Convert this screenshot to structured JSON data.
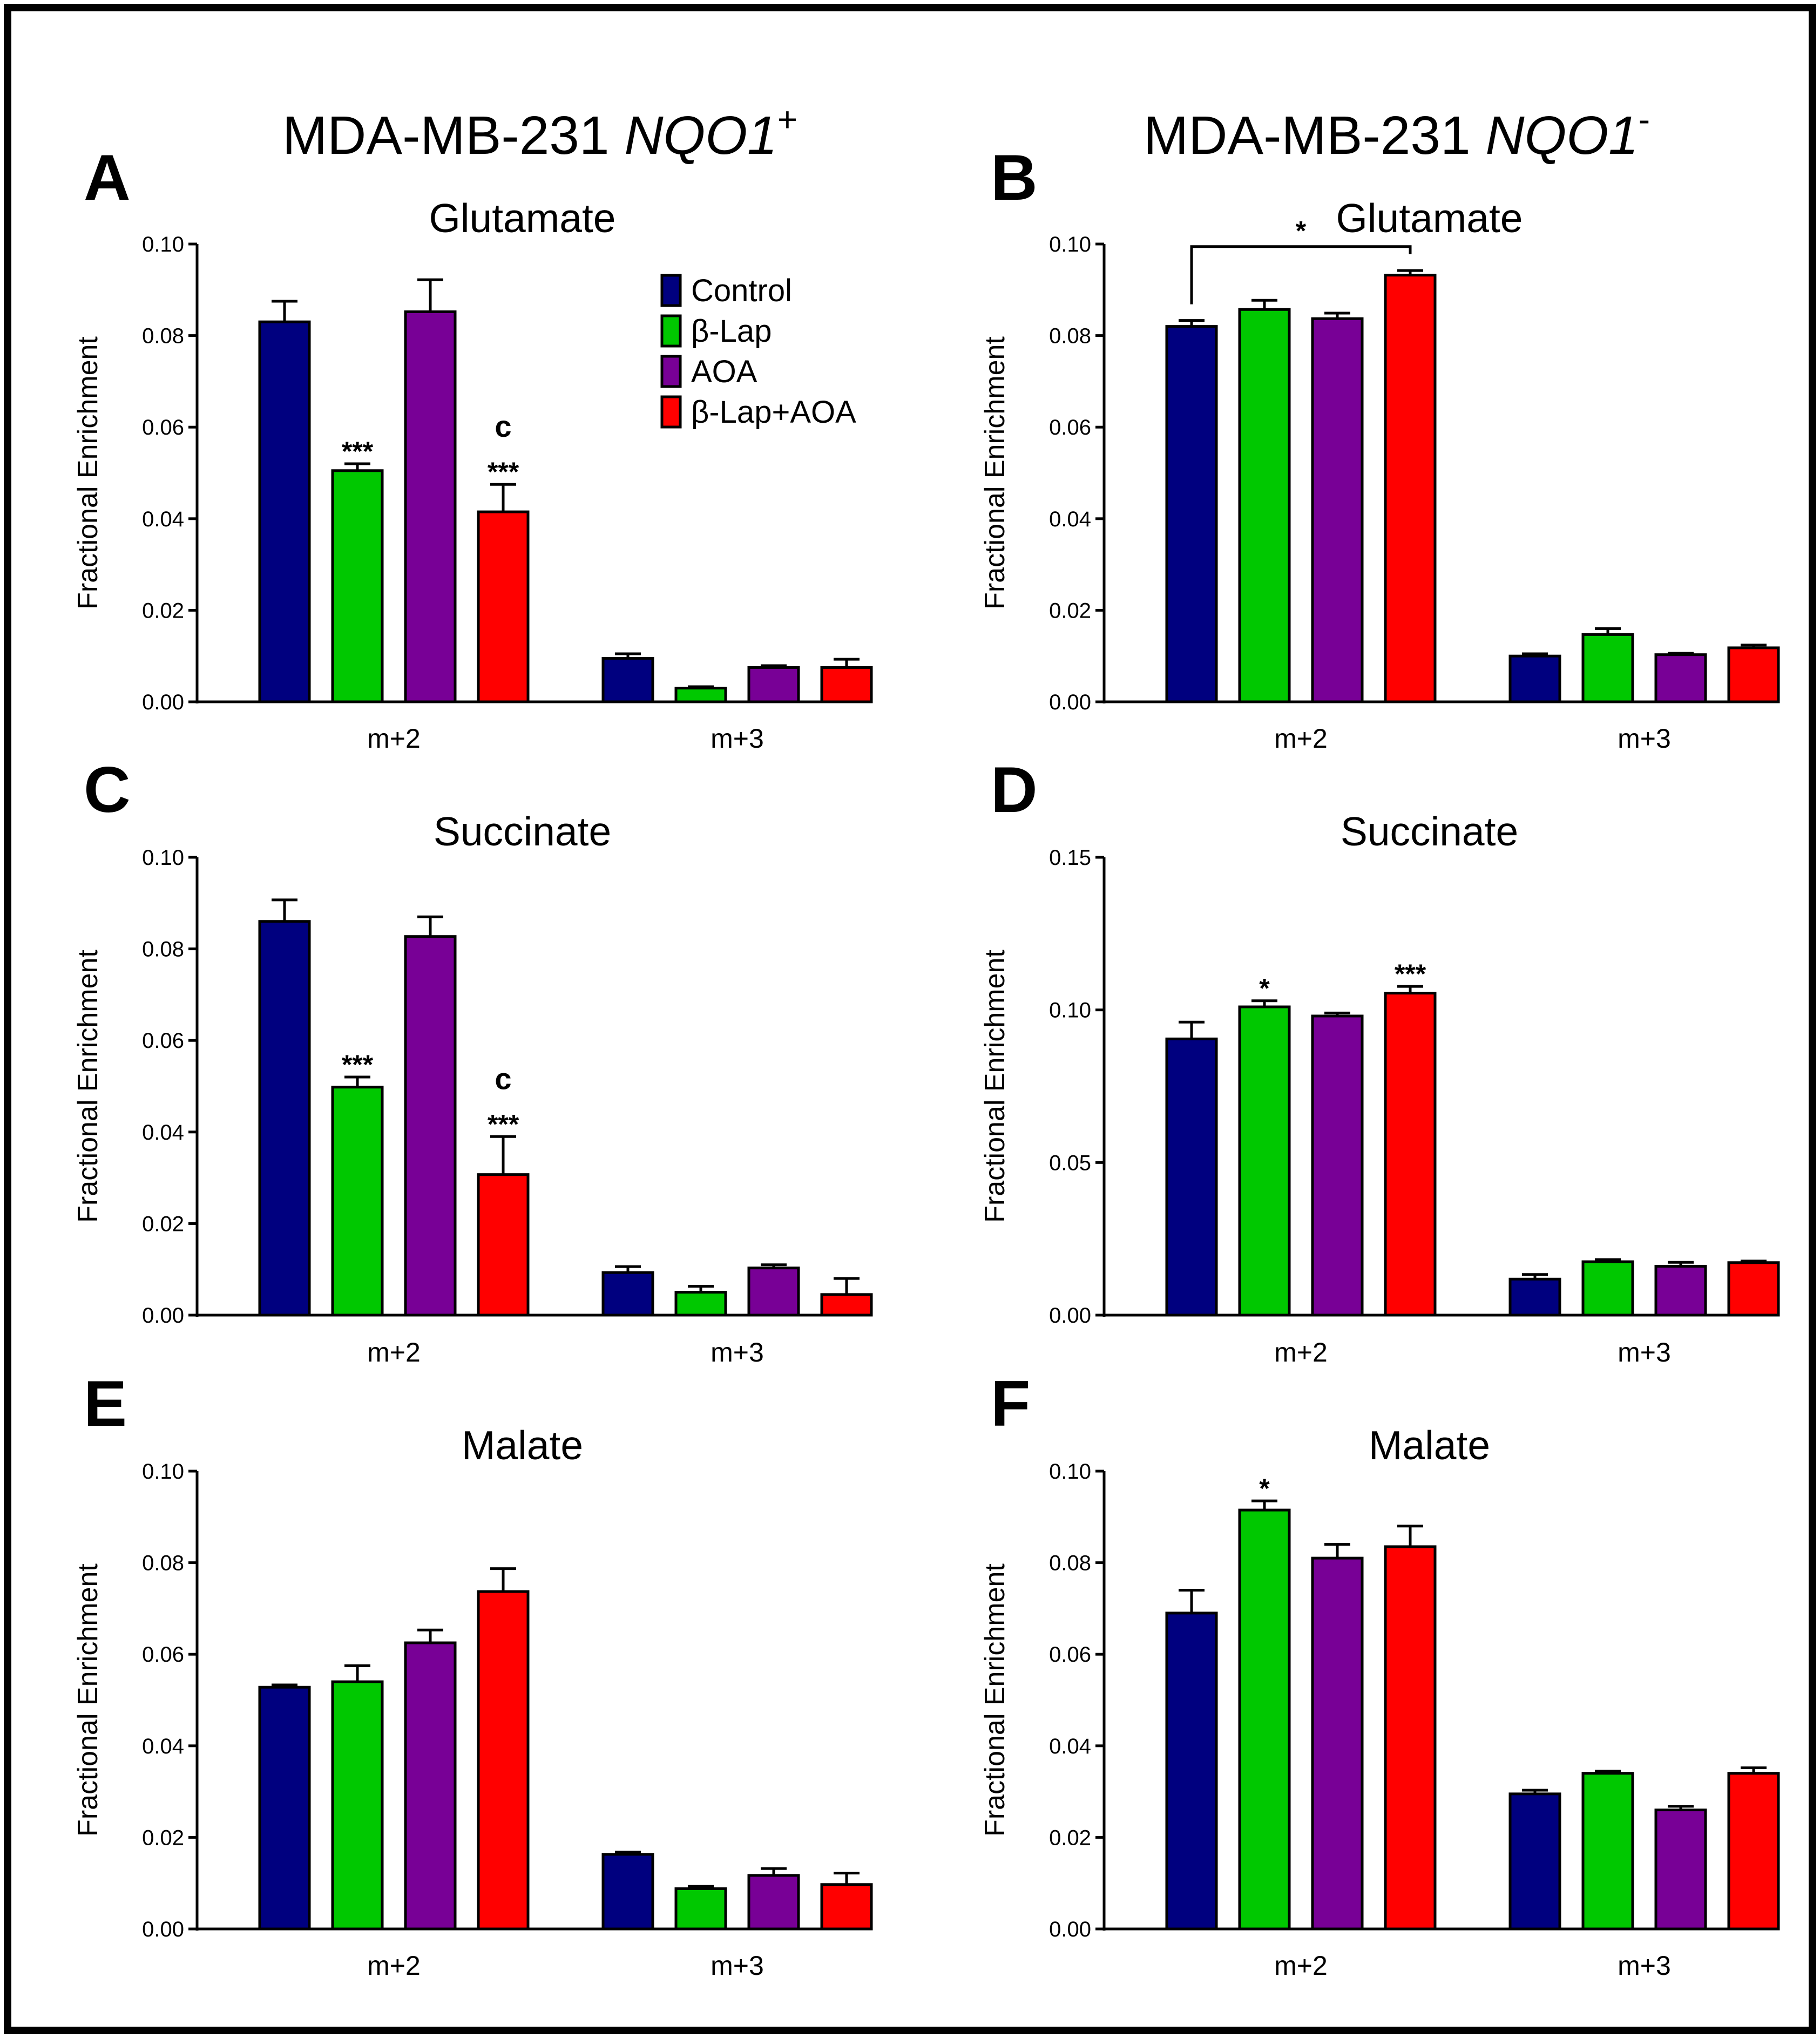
{
  "header": {
    "left_title": "MDA-MB-231 ",
    "left_gene": "NQO1",
    "left_sup": "+",
    "right_title": "MDA-MB-231 ",
    "right_gene": "NQO1",
    "right_sup": "-"
  },
  "legend": {
    "items": [
      {
        "label": "Control",
        "color": "#00007f"
      },
      {
        "label": "β-Lap",
        "color": "#00c800"
      },
      {
        "label": "AOA",
        "color": "#780096"
      },
      {
        "label": "β-Lap+AOA",
        "color": "#ff0000"
      }
    ]
  },
  "colors": {
    "control": "#00007f",
    "blap": "#00c800",
    "aoa": "#780096",
    "combo": "#ff0000",
    "frame": "#000000"
  },
  "chart_data": [
    {
      "panel": "A",
      "type": "bar",
      "title": "Glutamate",
      "ylabel": "Fractional Enrichment",
      "xlabel": "",
      "ylim": [
        0,
        0.1
      ],
      "yticks": [
        "0.00",
        "0.02",
        "0.04",
        "0.06",
        "0.08",
        "0.10"
      ],
      "categories": [
        "m+2",
        "m+3"
      ],
      "series": [
        {
          "name": "Control",
          "values": [
            0.083,
            0.0095
          ],
          "errors": [
            0.0045,
            0.001
          ]
        },
        {
          "name": "β-Lap",
          "values": [
            0.0505,
            0.003
          ],
          "errors": [
            0.0015,
            0.0003
          ]
        },
        {
          "name": "AOA",
          "values": [
            0.0852,
            0.0075
          ],
          "errors": [
            0.007,
            0.0004
          ]
        },
        {
          "name": "β-Lap+AOA",
          "values": [
            0.0415,
            0.0075
          ],
          "errors": [
            0.006,
            0.0018
          ]
        }
      ],
      "annotations": [
        {
          "category": 0,
          "series": 1,
          "text": "***"
        },
        {
          "category": 0,
          "series": 3,
          "text": "***"
        },
        {
          "category": 0,
          "series": 3,
          "text": "c"
        }
      ],
      "bracket": null
    },
    {
      "panel": "B",
      "type": "bar",
      "title": "Glutamate",
      "ylabel": "Fractional Enrichment",
      "xlabel": "",
      "ylim": [
        0,
        0.1
      ],
      "yticks": [
        "0.00",
        "0.02",
        "0.04",
        "0.06",
        "0.08",
        "0.10"
      ],
      "categories": [
        "m+2",
        "m+3"
      ],
      "series": [
        {
          "name": "Control",
          "values": [
            0.082,
            0.01
          ],
          "errors": [
            0.0013,
            0.0005
          ]
        },
        {
          "name": "β-Lap",
          "values": [
            0.0857,
            0.0147
          ],
          "errors": [
            0.002,
            0.0013
          ]
        },
        {
          "name": "AOA",
          "values": [
            0.0837,
            0.0103
          ],
          "errors": [
            0.0012,
            0.0003
          ]
        },
        {
          "name": "β-Lap+AOA",
          "values": [
            0.0932,
            0.0118
          ],
          "errors": [
            0.001,
            0.0006
          ]
        }
      ],
      "annotations": [],
      "bracket": {
        "from_series": 0,
        "to_series": 3,
        "category": 0,
        "y": 0.0985,
        "text": "*"
      }
    },
    {
      "panel": "C",
      "type": "bar",
      "title": "Succinate",
      "ylabel": "Fractional Enrichment",
      "xlabel": "",
      "ylim": [
        0,
        0.1
      ],
      "yticks": [
        "0.00",
        "0.02",
        "0.04",
        "0.06",
        "0.08",
        "0.10"
      ],
      "categories": [
        "m+2",
        "m+3"
      ],
      "series": [
        {
          "name": "Control",
          "values": [
            0.086,
            0.0093
          ],
          "errors": [
            0.0047,
            0.0013
          ]
        },
        {
          "name": "β-Lap",
          "values": [
            0.0498,
            0.005
          ],
          "errors": [
            0.0022,
            0.0013
          ]
        },
        {
          "name": "AOA",
          "values": [
            0.0827,
            0.0103
          ],
          "errors": [
            0.0043,
            0.0007
          ]
        },
        {
          "name": "β-Lap+AOA",
          "values": [
            0.0307,
            0.0045
          ],
          "errors": [
            0.0083,
            0.0035
          ]
        }
      ],
      "annotations": [
        {
          "category": 0,
          "series": 1,
          "text": "***"
        },
        {
          "category": 0,
          "series": 3,
          "text": "***"
        },
        {
          "category": 0,
          "series": 3,
          "text": "c"
        }
      ],
      "bracket": null
    },
    {
      "panel": "D",
      "type": "bar",
      "title": "Succinate",
      "ylabel": "Fractional Enrichment",
      "xlabel": "",
      "ylim": [
        0,
        0.15
      ],
      "yticks": [
        "0.00",
        "0.05",
        "0.10",
        "0.15"
      ],
      "categories": [
        "m+2",
        "m+3"
      ],
      "series": [
        {
          "name": "Control",
          "values": [
            0.0905,
            0.0118
          ],
          "errors": [
            0.0055,
            0.0015
          ]
        },
        {
          "name": "β-Lap",
          "values": [
            0.101,
            0.0175
          ],
          "errors": [
            0.002,
            0.0007
          ]
        },
        {
          "name": "AOA",
          "values": [
            0.098,
            0.016
          ],
          "errors": [
            0.001,
            0.0013
          ]
        },
        {
          "name": "β-Lap+AOA",
          "values": [
            0.1055,
            0.0172
          ],
          "errors": [
            0.0022,
            0.0005
          ]
        }
      ],
      "annotations": [
        {
          "category": 0,
          "series": 1,
          "text": "*"
        },
        {
          "category": 0,
          "series": 3,
          "text": "***"
        }
      ],
      "bracket": null
    },
    {
      "panel": "E",
      "type": "bar",
      "title": "Malate",
      "ylabel": "Fractional Enrichment",
      "xlabel": "",
      "ylim": [
        0,
        0.1
      ],
      "yticks": [
        "0.00",
        "0.02",
        "0.04",
        "0.06",
        "0.08",
        "0.10"
      ],
      "categories": [
        "m+2",
        "m+3"
      ],
      "series": [
        {
          "name": "Control",
          "values": [
            0.0528,
            0.0163
          ],
          "errors": [
            0.0005,
            0.0005
          ]
        },
        {
          "name": "β-Lap",
          "values": [
            0.054,
            0.0088
          ],
          "errors": [
            0.0035,
            0.0005
          ]
        },
        {
          "name": "AOA",
          "values": [
            0.0625,
            0.0117
          ],
          "errors": [
            0.0028,
            0.0015
          ]
        },
        {
          "name": "β-Lap+AOA",
          "values": [
            0.0737,
            0.0097
          ],
          "errors": [
            0.005,
            0.0025
          ]
        }
      ],
      "annotations": [],
      "bracket": null
    },
    {
      "panel": "F",
      "type": "bar",
      "title": "Malate",
      "ylabel": "Fractional Enrichment",
      "xlabel": "",
      "ylim": [
        0,
        0.1
      ],
      "yticks": [
        "0.00",
        "0.02",
        "0.04",
        "0.06",
        "0.08",
        "0.10"
      ],
      "categories": [
        "m+2",
        "m+3"
      ],
      "series": [
        {
          "name": "Control",
          "values": [
            0.069,
            0.0295
          ],
          "errors": [
            0.005,
            0.0008
          ]
        },
        {
          "name": "β-Lap",
          "values": [
            0.0915,
            0.034
          ],
          "errors": [
            0.002,
            0.0005
          ]
        },
        {
          "name": "AOA",
          "values": [
            0.081,
            0.026
          ],
          "errors": [
            0.003,
            0.0008
          ]
        },
        {
          "name": "β-Lap+AOA",
          "values": [
            0.0835,
            0.034
          ],
          "errors": [
            0.0045,
            0.0012
          ]
        }
      ],
      "annotations": [
        {
          "category": 0,
          "series": 1,
          "text": "*"
        }
      ],
      "bracket": null
    }
  ]
}
